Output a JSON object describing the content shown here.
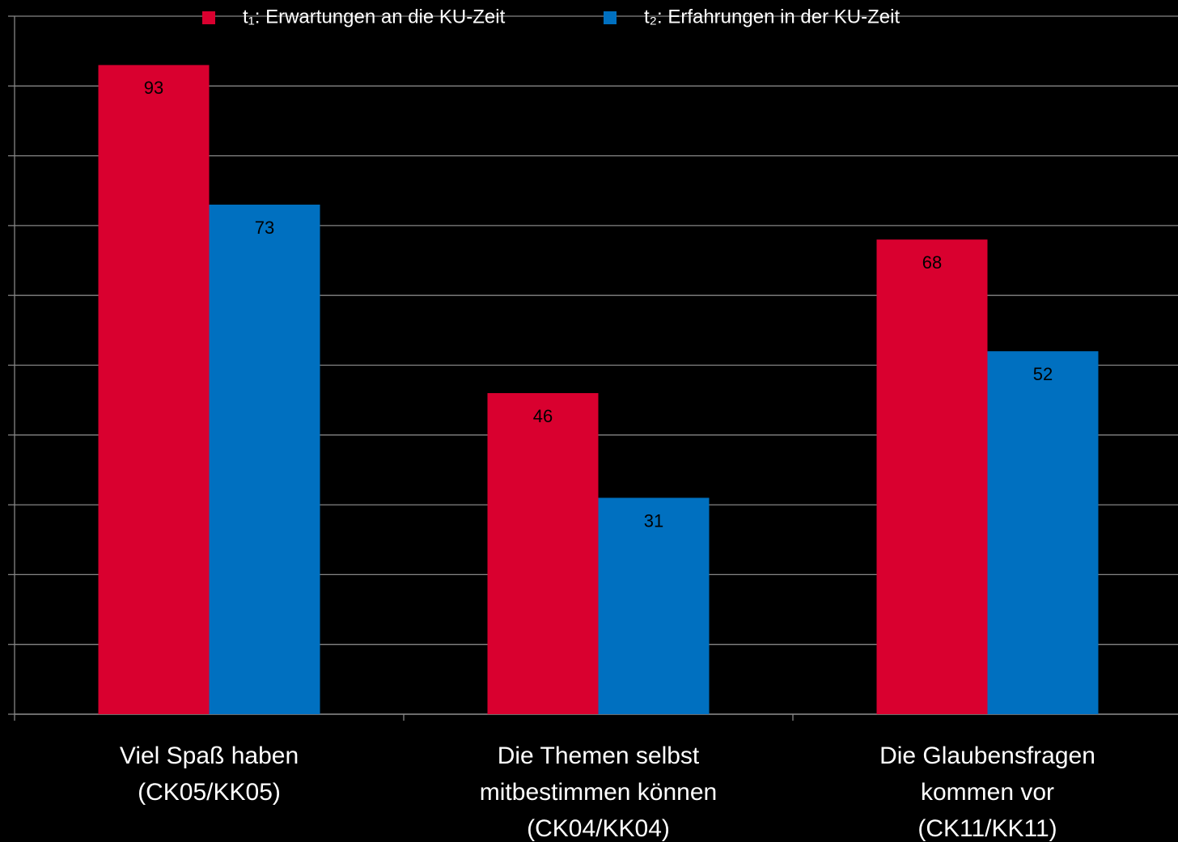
{
  "chart_data": {
    "type": "bar",
    "categories": [
      "Viel Spaß haben (CK05/KK05)",
      "Die Themen selbst mitbestimmen können (CK04/KK04)",
      "Die Glaubensfragen kommen vor (CK11/KK11)"
    ],
    "series": [
      {
        "name": "t₁: Erwartungen an die KU-Zeit",
        "color": "#d9002f",
        "values": [
          93,
          46,
          68
        ]
      },
      {
        "name": "t₂: Erfahrungen in der KU-Zeit",
        "color": "#0070c0",
        "values": [
          73,
          31,
          52
        ]
      }
    ],
    "ylim": [
      0,
      100
    ],
    "yticks": [
      0,
      10,
      20,
      30,
      40,
      50,
      60,
      70,
      80,
      90,
      100
    ],
    "grid": true,
    "legend": "top"
  }
}
